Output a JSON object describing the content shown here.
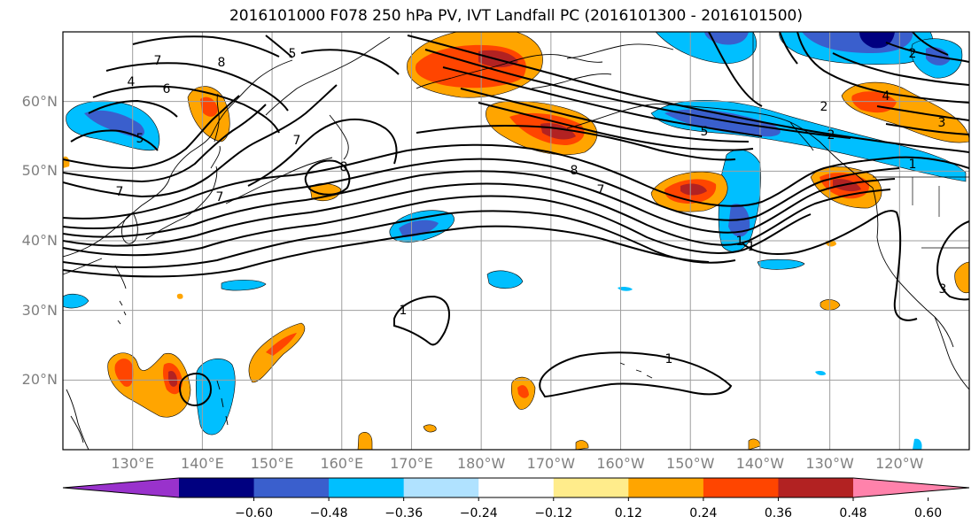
{
  "title": "2016101000 F078 250 hPa PV, IVT Landfall PC (2016101300 - 2016101500)",
  "map": {
    "lon_range": [
      120,
      250
    ],
    "lat_range": [
      10,
      70
    ],
    "lat_labels": [
      "60°N",
      "50°N",
      "40°N",
      "30°N",
      "20°N"
    ],
    "lat_values": [
      60,
      50,
      40,
      30,
      20
    ],
    "lon_labels": [
      "130°E",
      "140°E",
      "150°E",
      "160°E",
      "170°E",
      "180°W",
      "170°W",
      "160°W",
      "150°W",
      "140°W",
      "130°W",
      "120°W"
    ],
    "lon_values": [
      130,
      140,
      150,
      160,
      170,
      180,
      190,
      200,
      210,
      220,
      230,
      240
    ],
    "contour_labels": [
      "7",
      "6",
      "4",
      "5",
      "7",
      "7",
      "8",
      "5",
      "8",
      "7",
      "1",
      "1",
      "1",
      "1",
      "2",
      "2",
      "5",
      "4",
      "3",
      "2",
      "1",
      "7",
      "8",
      "3"
    ]
  },
  "colorbar": {
    "tick_labels": [
      "−0.60",
      "−0.48",
      "−0.36",
      "−0.24",
      "−0.12",
      "0.12",
      "0.24",
      "0.36",
      "0.48",
      "0.60"
    ],
    "colors": [
      "#9932cc",
      "#000080",
      "#3a5fcd",
      "#00bfff",
      "#b0e2ff",
      "#ffffff",
      "#ffec8b",
      "#ffa500",
      "#ff4500",
      "#b22222",
      "#ff82ab"
    ]
  }
}
